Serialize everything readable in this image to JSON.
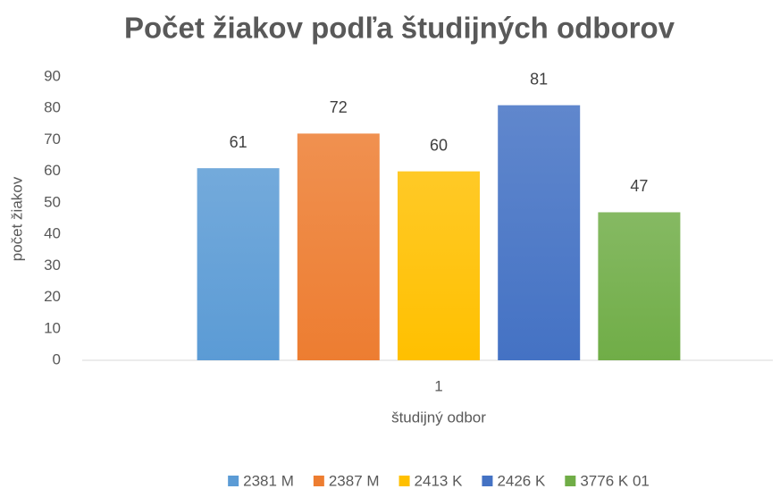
{
  "chart_data": {
    "type": "bar",
    "title": "Počet žiakov podľa študijných odborov",
    "x_label": "študijný odbor",
    "y_label": "počet žiakov",
    "categories": [
      "1"
    ],
    "series": [
      {
        "name": "2381 M",
        "color": "#5b9bd5",
        "values": [
          61
        ]
      },
      {
        "name": "2387 M",
        "color": "#ed7d31",
        "values": [
          72
        ]
      },
      {
        "name": "2413 K",
        "color": "#ffc000",
        "values": [
          60
        ]
      },
      {
        "name": "2426 K",
        "color": "#4472c4",
        "values": [
          81
        ]
      },
      {
        "name": "3776 K 01",
        "color": "#70ad47",
        "values": [
          47
        ]
      }
    ],
    "ylim": [
      0,
      90
    ],
    "yticks": [
      0,
      10,
      20,
      30,
      40,
      50,
      60,
      70,
      80,
      90
    ],
    "grid": false,
    "legend": "bottom"
  }
}
